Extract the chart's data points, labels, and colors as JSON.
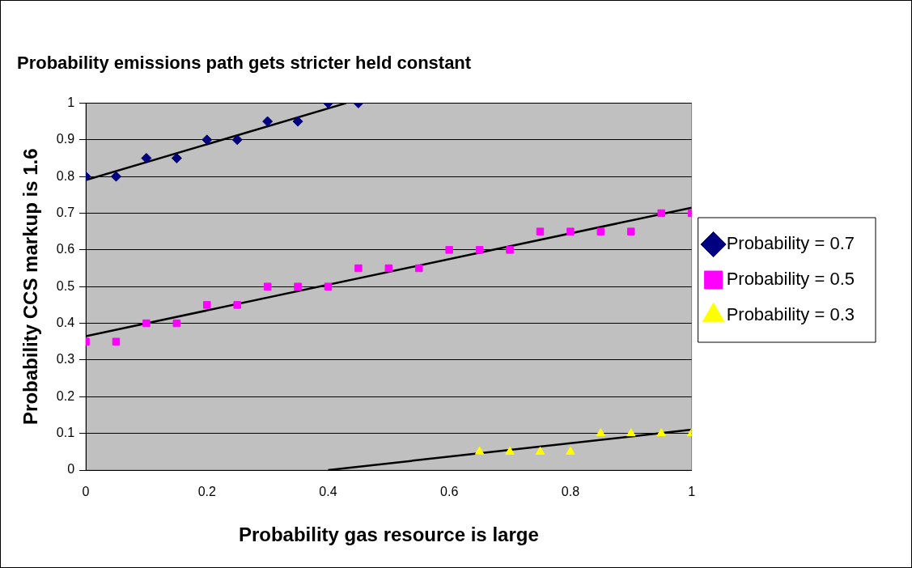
{
  "chart_data": {
    "type": "scatter",
    "title": "Probability emissions path gets stricter held constant",
    "xlabel": "Probability gas resource is large",
    "ylabel": "Probability CCS markup is 1.6",
    "series": [
      {
        "name": "Probability = 0.7",
        "color": "#000080",
        "marker": "diamond",
        "x": [
          0,
          0.05,
          0.1,
          0.15,
          0.2,
          0.25,
          0.3,
          0.35,
          0.4,
          0.45
        ],
        "values": [
          0.8,
          0.8,
          0.85,
          0.85,
          0.9,
          0.9,
          0.95,
          0.95,
          1,
          1
        ]
      },
      {
        "name": "Probability = 0.5",
        "color": "#ff00ff",
        "marker": "square",
        "x": [
          0,
          0.05,
          0.1,
          0.15,
          0.2,
          0.25,
          0.3,
          0.35,
          0.4,
          0.45,
          0.5,
          0.55,
          0.6,
          0.65,
          0.7,
          0.75,
          0.8,
          0.85,
          0.9,
          0.95,
          1
        ],
        "values": [
          0.35,
          0.35,
          0.4,
          0.4,
          0.45,
          0.45,
          0.5,
          0.5,
          0.5,
          0.55,
          0.55,
          0.55,
          0.6,
          0.6,
          0.6,
          0.65,
          0.65,
          0.65,
          0.65,
          0.7,
          0.7
        ]
      },
      {
        "name": "Probability = 0.3",
        "color": "#ffff00",
        "marker": "triangle",
        "x": [
          0.65,
          0.7,
          0.75,
          0.8,
          0.85,
          0.9,
          0.95,
          1
        ],
        "values": [
          0.05,
          0.05,
          0.05,
          0.05,
          0.1,
          0.1,
          0.1,
          0.1
        ]
      },
      {
        "type": "line",
        "color": "#000000",
        "x": [
          0,
          0.43
        ],
        "values": [
          0.79,
          1
        ]
      },
      {
        "type": "line",
        "color": "#000000",
        "x": [
          0,
          1
        ],
        "values": [
          0.365,
          0.715
        ]
      },
      {
        "type": "line",
        "color": "#000000",
        "x": [
          0.4,
          1
        ],
        "values": [
          0,
          0.11
        ]
      }
    ],
    "xlim": [
      0,
      1
    ],
    "xticks": [
      0,
      0.2,
      0.4,
      0.6,
      0.8,
      1
    ],
    "ylim": [
      0,
      1
    ],
    "yticks": [
      0,
      0.1,
      0.2,
      0.3,
      0.4,
      0.5,
      0.6,
      0.7,
      0.8,
      0.9,
      1
    ],
    "grid": "y",
    "legend": "right"
  }
}
